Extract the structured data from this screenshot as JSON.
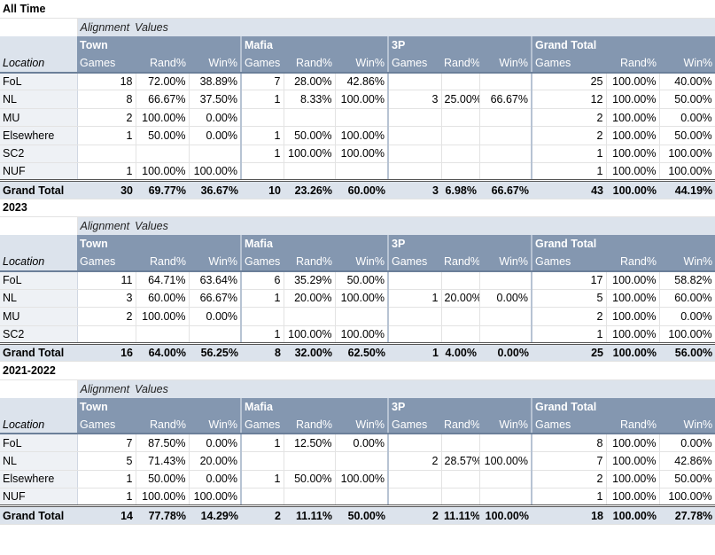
{
  "labels": {
    "alignment": "Alignment",
    "values": "Values",
    "location": "Location",
    "groups": [
      "Town",
      "Mafia",
      "3P",
      "Grand Total"
    ],
    "cols": [
      "Games",
      "Rand%",
      "Win%"
    ],
    "grand_total": "Grand Total"
  },
  "sections": [
    {
      "title": "All Time",
      "rows": [
        {
          "loc": "FoL",
          "v": [
            "18",
            "72.00%",
            "38.89%",
            "7",
            "28.00%",
            "42.86%",
            "",
            "",
            "",
            "25",
            "100.00%",
            "40.00%"
          ]
        },
        {
          "loc": "NL",
          "v": [
            "8",
            "66.67%",
            "37.50%",
            "1",
            "8.33%",
            "100.00%",
            "3",
            "25.00%",
            "66.67%",
            "12",
            "100.00%",
            "50.00%"
          ]
        },
        {
          "loc": "MU",
          "v": [
            "2",
            "100.00%",
            "0.00%",
            "",
            "",
            "",
            "",
            "",
            "",
            "2",
            "100.00%",
            "0.00%"
          ]
        },
        {
          "loc": "Elsewhere",
          "v": [
            "1",
            "50.00%",
            "0.00%",
            "1",
            "50.00%",
            "100.00%",
            "",
            "",
            "",
            "2",
            "100.00%",
            "50.00%"
          ]
        },
        {
          "loc": "SC2",
          "v": [
            "",
            "",
            "",
            "1",
            "100.00%",
            "100.00%",
            "",
            "",
            "",
            "1",
            "100.00%",
            "100.00%"
          ]
        },
        {
          "loc": "NUF",
          "v": [
            "1",
            "100.00%",
            "100.00%",
            "",
            "",
            "",
            "",
            "",
            "",
            "1",
            "100.00%",
            "100.00%"
          ]
        }
      ],
      "total": [
        "30",
        "69.77%",
        "36.67%",
        "10",
        "23.26%",
        "60.00%",
        "3",
        "6.98%",
        "66.67%",
        "43",
        "100.00%",
        "44.19%"
      ]
    },
    {
      "title": "2023",
      "rows": [
        {
          "loc": "FoL",
          "v": [
            "11",
            "64.71%",
            "63.64%",
            "6",
            "35.29%",
            "50.00%",
            "",
            "",
            "",
            "17",
            "100.00%",
            "58.82%"
          ]
        },
        {
          "loc": "NL",
          "v": [
            "3",
            "60.00%",
            "66.67%",
            "1",
            "20.00%",
            "100.00%",
            "1",
            "20.00%",
            "0.00%",
            "5",
            "100.00%",
            "60.00%"
          ]
        },
        {
          "loc": "MU",
          "v": [
            "2",
            "100.00%",
            "0.00%",
            "",
            "",
            "",
            "",
            "",
            "",
            "2",
            "100.00%",
            "0.00%"
          ]
        },
        {
          "loc": "SC2",
          "v": [
            "",
            "",
            "",
            "1",
            "100.00%",
            "100.00%",
            "",
            "",
            "",
            "1",
            "100.00%",
            "100.00%"
          ]
        }
      ],
      "total": [
        "16",
        "64.00%",
        "56.25%",
        "8",
        "32.00%",
        "62.50%",
        "1",
        "4.00%",
        "0.00%",
        "25",
        "100.00%",
        "56.00%"
      ]
    },
    {
      "title": "2021-2022",
      "rows": [
        {
          "loc": "FoL",
          "v": [
            "7",
            "87.50%",
            "0.00%",
            "1",
            "12.50%",
            "0.00%",
            "",
            "",
            "",
            "8",
            "100.00%",
            "0.00%"
          ]
        },
        {
          "loc": "NL",
          "v": [
            "5",
            "71.43%",
            "20.00%",
            "",
            "",
            "",
            "2",
            "28.57%",
            "100.00%",
            "7",
            "100.00%",
            "42.86%"
          ]
        },
        {
          "loc": "Elsewhere",
          "v": [
            "1",
            "50.00%",
            "0.00%",
            "1",
            "50.00%",
            "100.00%",
            "",
            "",
            "",
            "2",
            "100.00%",
            "50.00%"
          ]
        },
        {
          "loc": "NUF",
          "v": [
            "1",
            "100.00%",
            "100.00%",
            "",
            "",
            "",
            "",
            "",
            "",
            "1",
            "100.00%",
            "100.00%"
          ]
        }
      ],
      "total": [
        "14",
        "77.78%",
        "14.29%",
        "2",
        "11.11%",
        "50.00%",
        "2",
        "11.11%",
        "100.00%",
        "18",
        "100.00%",
        "27.78%"
      ]
    }
  ]
}
